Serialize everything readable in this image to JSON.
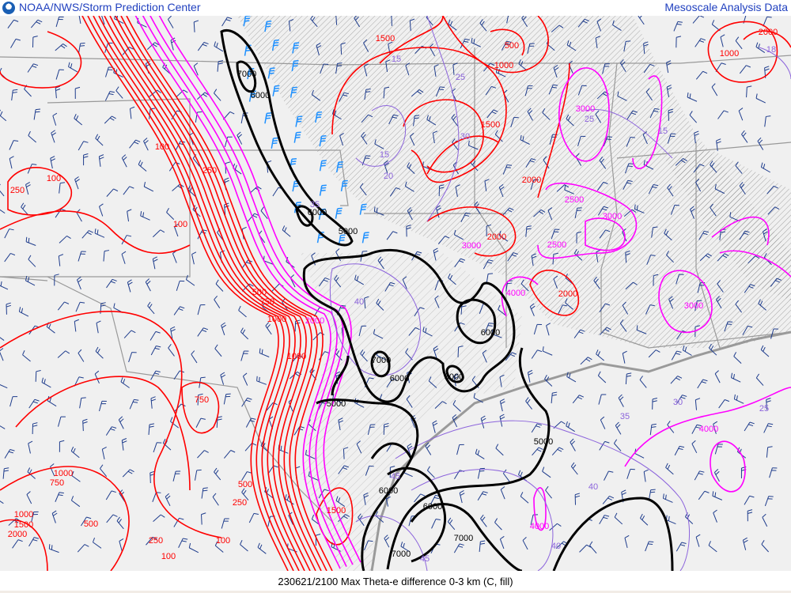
{
  "header": {
    "left_title": "NOAA/NWS/Storm Prediction Center",
    "right_title": "Mesoscale Analysis Data",
    "logo_icon": "noaa-logo-icon"
  },
  "footer": {
    "caption": "230621/2100 Max Theta-e difference 0-3 km (C, fill)"
  },
  "colors": {
    "background": "#f0f0f0",
    "cape_contour": "#ff0000",
    "high_cape_contour": "#ff00ff",
    "height_contour": "#000000",
    "theta_e_contour": "#8c64dc",
    "wind_barbs": "#1e3c8c",
    "strong_wind_barbs": "#1e90ff",
    "borders": "#999999",
    "hatch": "#666666"
  },
  "contour_labels": {
    "red": [
      "100",
      "250",
      "100",
      "250",
      "100",
      "500",
      "750",
      "1000",
      "1000",
      "750",
      "1000",
      "750",
      "500",
      "250",
      "500",
      "250",
      "100",
      "100",
      "1500",
      "1000",
      "1500",
      "2000",
      "1500",
      "500",
      "1000",
      "1500",
      "2000",
      "2000",
      "2000",
      "1000",
      "2000"
    ],
    "magenta": [
      "2000",
      "3000",
      "2500",
      "3000",
      "2500",
      "4000",
      "3000",
      "3000",
      "4000",
      "4000"
    ],
    "black": [
      "7000",
      "6000",
      "6000",
      "5000",
      "6000",
      "7000",
      "6000",
      "5000",
      "5000",
      "5000",
      "6000",
      "6000",
      "7000",
      "7000"
    ],
    "purple": [
      "15",
      "15",
      "20",
      "35",
      "40",
      "30",
      "25",
      "25",
      "15",
      "35",
      "30",
      "25",
      "40",
      "40",
      "45",
      "45",
      "18"
    ]
  }
}
